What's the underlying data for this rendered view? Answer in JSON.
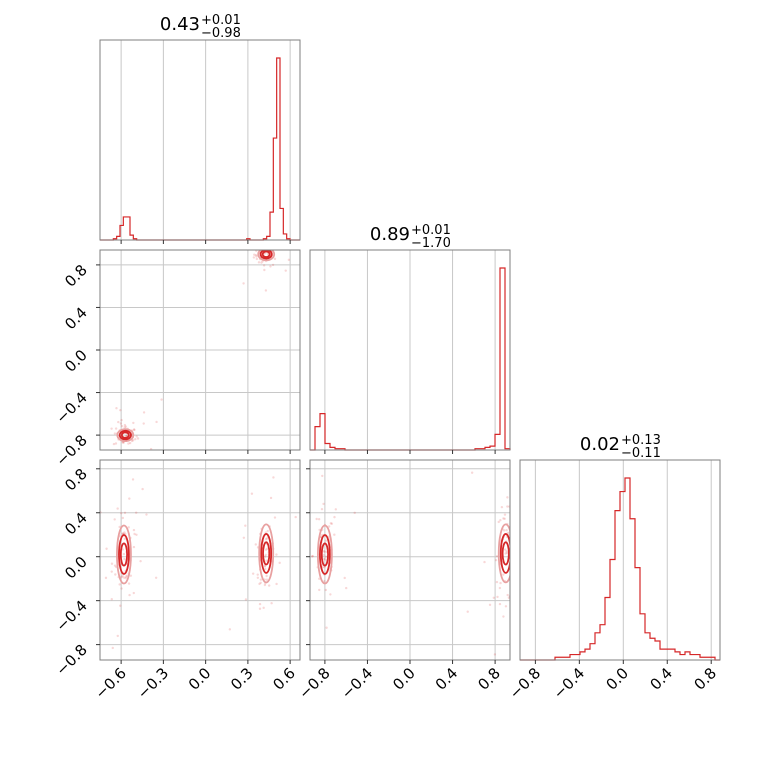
{
  "chart_data": {
    "type": "corner",
    "color": "#d62728",
    "ticks": {
      "param0": [
        "−0.6",
        "−0.3",
        "0.0",
        "0.3",
        "0.6"
      ],
      "param1": [
        "−0.8",
        "−0.4",
        "0.0",
        "0.4",
        "0.8"
      ],
      "param2": [
        "−0.8",
        "−0.4",
        "0.0",
        "0.4",
        "0.8"
      ]
    },
    "titles": [
      {
        "value": "0.43",
        "plus": "+0.01",
        "minus": "−0.98"
      },
      {
        "value": "0.89",
        "plus": "+0.01",
        "minus": "−1.70"
      },
      {
        "value": "0.02",
        "plus": "+0.13",
        "minus": "−0.11"
      }
    ],
    "ranges": [
      [
        -0.75,
        0.67
      ],
      [
        -0.94,
        0.94
      ],
      [
        -0.94,
        0.88
      ]
    ],
    "histograms": [
      {
        "param": 0,
        "bins": [
          -0.75,
          0.67
        ],
        "counts": [
          0,
          0,
          0,
          0,
          1,
          3,
          12,
          19,
          19,
          4,
          1,
          0,
          0,
          0,
          0,
          0,
          0,
          0,
          0,
          0,
          0,
          0,
          0,
          0,
          0,
          0,
          0,
          0,
          0,
          0,
          0,
          0,
          0,
          0,
          0,
          0,
          0,
          0,
          0,
          0,
          0,
          0,
          0,
          0,
          1,
          0,
          0,
          0,
          0,
          1,
          3,
          23,
          84,
          150,
          26,
          5,
          1,
          0,
          0,
          0
        ]
      },
      {
        "param": 1,
        "bins": [
          -0.94,
          0.94
        ],
        "counts": [
          0,
          18,
          28,
          5,
          2,
          1,
          1,
          0,
          0,
          0,
          0,
          0,
          0,
          0,
          0,
          0,
          0,
          0,
          0,
          0,
          0,
          0,
          0,
          0,
          0,
          0,
          0,
          0,
          0,
          0,
          0,
          0,
          0,
          1,
          1,
          2,
          3,
          12,
          140,
          1
        ]
      },
      {
        "param": 2,
        "bins": [
          -0.94,
          0.88
        ],
        "counts": [
          0,
          0,
          0,
          0,
          0,
          0,
          0,
          1,
          1,
          1,
          2,
          2,
          3,
          4,
          6,
          10,
          13,
          23,
          37,
          55,
          62,
          67,
          52,
          34,
          17,
          10,
          8,
          7,
          4,
          4,
          4,
          3,
          2,
          3,
          2,
          2,
          1,
          1,
          1,
          0
        ]
      }
    ],
    "pairs": [
      {
        "x": 0,
        "y": 1,
        "modes": [
          [
            0.43,
            0.9
          ],
          [
            -0.57,
            -0.8
          ]
        ]
      },
      {
        "x": 0,
        "y": 2,
        "modes": [
          [
            0.43,
            0.03
          ],
          [
            -0.58,
            0.02
          ]
        ]
      },
      {
        "x": 1,
        "y": 2,
        "modes": [
          [
            0.9,
            0.03
          ],
          [
            -0.8,
            0.02
          ]
        ]
      }
    ]
  }
}
